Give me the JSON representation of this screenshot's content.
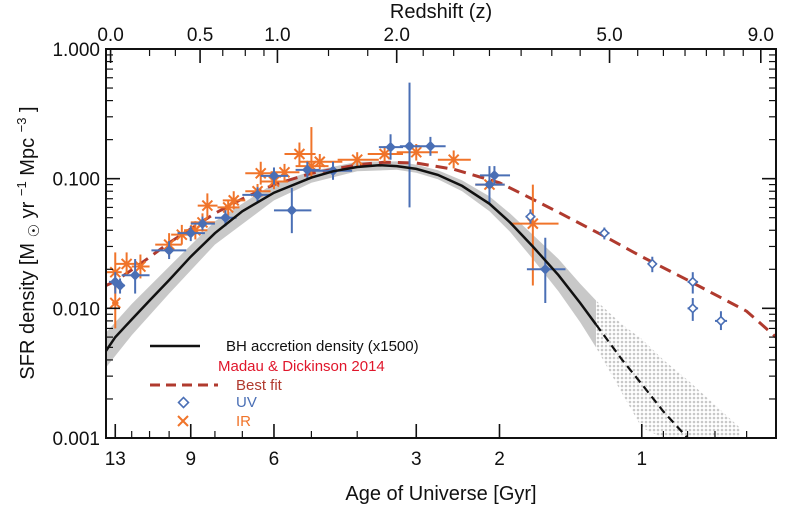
{
  "chart_data": {
    "type": "scatter",
    "title": "",
    "top_axis_title": "Redshift (z)",
    "xlabel": "Age of Universe [Gyr]",
    "ylabel_prefix": "SFR density  [M",
    "ylabel_sun": "☉",
    "ylabel_mid": " yr",
    "ylabel_exp1": "−1",
    "ylabel_mpc": " Mpc",
    "ylabel_exp2": "−3",
    "ylabel_suffix": "]",
    "x_scale": "log",
    "xlim": [
      13.6,
      0.52
    ],
    "y_scale": "log",
    "ylim": [
      0.001,
      1.0
    ],
    "y_ticks": [
      {
        "value": 1.0,
        "label": "1.000"
      },
      {
        "value": 0.1,
        "label": "0.100"
      },
      {
        "value": 0.01,
        "label": "0.010"
      },
      {
        "value": 0.001,
        "label": "0.001"
      }
    ],
    "x_ticks": [
      {
        "value": 13,
        "label": "13"
      },
      {
        "value": 9,
        "label": "9"
      },
      {
        "value": 6,
        "label": "6"
      },
      {
        "value": 3,
        "label": "3"
      },
      {
        "value": 2,
        "label": "2"
      },
      {
        "value": 1,
        "label": "1"
      }
    ],
    "top_ticks": [
      {
        "age": 13.3,
        "label": "0.0"
      },
      {
        "age": 8.6,
        "label": "0.5"
      },
      {
        "age": 5.9,
        "label": "1.0"
      },
      {
        "age": 3.3,
        "label": "2.0"
      },
      {
        "age": 1.17,
        "label": "5.0"
      },
      {
        "age": 0.56,
        "label": "9.0"
      }
    ],
    "legend": {
      "bh_label": "BH accretion density (x1500)",
      "ref_title": "Madau & Dickinson 2014",
      "fit_label": "Best fit",
      "uv_label": "UV",
      "ir_label": "IR"
    },
    "colors": {
      "bh": "#111111",
      "band": "#c8c8c8",
      "fit": "#b03a2e",
      "ref": "#e0162b",
      "uv": "#4a6fb5",
      "ir": "#f0742a"
    },
    "series": [
      {
        "name": "BH accretion density (x1500)",
        "kind": "line",
        "points": [
          [
            13.6,
            0.0047
          ],
          [
            13,
            0.006
          ],
          [
            12,
            0.0082
          ],
          [
            11,
            0.0115
          ],
          [
            10,
            0.0165
          ],
          [
            9,
            0.025
          ],
          [
            8,
            0.038
          ],
          [
            7,
            0.056
          ],
          [
            6,
            0.078
          ],
          [
            5,
            0.102
          ],
          [
            4.5,
            0.114
          ],
          [
            4,
            0.123
          ],
          [
            3.6,
            0.127
          ],
          [
            3.3,
            0.125
          ],
          [
            3,
            0.119
          ],
          [
            2.7,
            0.107
          ],
          [
            2.4,
            0.088
          ],
          [
            2.1,
            0.064
          ],
          [
            1.9,
            0.046
          ],
          [
            1.7,
            0.03
          ],
          [
            1.5,
            0.018
          ],
          [
            1.35,
            0.011
          ],
          [
            1.25,
            0.0075
          ]
        ]
      },
      {
        "name": "BH extrapolation",
        "kind": "line",
        "points": [
          [
            1.25,
            0.0075
          ],
          [
            1.1,
            0.004
          ],
          [
            1.0,
            0.0026
          ],
          [
            0.9,
            0.0016
          ],
          [
            0.8,
            0.001
          ]
        ]
      },
      {
        "name": "BH uncertainty band",
        "kind": "band",
        "points": [
          [
            13.6,
            0.0035,
            0.0065
          ],
          [
            12,
            0.0062,
            0.0108
          ],
          [
            10,
            0.013,
            0.021
          ],
          [
            8,
            0.031,
            0.047
          ],
          [
            6,
            0.068,
            0.092
          ],
          [
            5,
            0.093,
            0.114
          ],
          [
            4,
            0.114,
            0.135
          ],
          [
            3.3,
            0.117,
            0.136
          ],
          [
            3,
            0.111,
            0.128
          ],
          [
            2.7,
            0.099,
            0.116
          ],
          [
            2.4,
            0.08,
            0.097
          ],
          [
            2.1,
            0.056,
            0.073
          ],
          [
            1.9,
            0.039,
            0.054
          ],
          [
            1.7,
            0.024,
            0.037
          ],
          [
            1.5,
            0.0135,
            0.024
          ],
          [
            1.35,
            0.0078,
            0.0155
          ],
          [
            1.25,
            0.005,
            0.0115
          ]
        ]
      },
      {
        "name": "BH extrapolation band",
        "kind": "band",
        "points": [
          [
            1.25,
            0.005,
            0.0115
          ],
          [
            1.1,
            0.0022,
            0.0075
          ],
          [
            1.0,
            0.0012,
            0.0058
          ],
          [
            0.9,
            0.001,
            0.004
          ],
          [
            0.8,
            0.001,
            0.0028
          ],
          [
            0.7,
            0.001,
            0.0018
          ],
          [
            0.62,
            0.001,
            0.0012
          ]
        ]
      },
      {
        "name": "Best fit",
        "kind": "line",
        "points": [
          [
            13.6,
            0.015
          ],
          [
            13,
            0.0162
          ],
          [
            12,
            0.0198
          ],
          [
            11,
            0.0248
          ],
          [
            10,
            0.032
          ],
          [
            9,
            0.041
          ],
          [
            8,
            0.054
          ],
          [
            7,
            0.07
          ],
          [
            6,
            0.09
          ],
          [
            5,
            0.11
          ],
          [
            4,
            0.128
          ],
          [
            3.5,
            0.134
          ],
          [
            3,
            0.132
          ],
          [
            2.5,
            0.118
          ],
          [
            2.2,
            0.103
          ],
          [
            2,
            0.093
          ],
          [
            1.8,
            0.077
          ],
          [
            1.5,
            0.055
          ],
          [
            1.2,
            0.036
          ],
          [
            1,
            0.025
          ],
          [
            0.8,
            0.0165
          ],
          [
            0.6,
            0.0095
          ],
          [
            0.52,
            0.006
          ]
        ]
      },
      {
        "name": "UV",
        "kind": "points",
        "points": [
          {
            "x": 13,
            "y": 0.016,
            "xe": [
              12.6,
              13.4
            ],
            "ye": [
              0.013,
              0.019
            ],
            "f": true
          },
          {
            "x": 12.7,
            "y": 0.015,
            "xe": [
              12.4,
              13.0
            ],
            "ye": [
              0.013,
              0.017
            ],
            "f": true
          },
          {
            "x": 11.8,
            "y": 0.018,
            "xe": [
              11.0,
              12.6
            ],
            "ye": [
              0.013,
              0.024
            ],
            "f": true
          },
          {
            "x": 10,
            "y": 0.028,
            "xe": [
              9.2,
              10.9
            ],
            "ye": [
              0.024,
              0.033
            ],
            "f": true
          },
          {
            "x": 9,
            "y": 0.038,
            "xe": [
              8.4,
              9.6
            ],
            "ye": [
              0.033,
              0.043
            ],
            "f": true
          },
          {
            "x": 8.5,
            "y": 0.045,
            "xe": [
              8.0,
              9.0
            ],
            "ye": [
              0.04,
              0.051
            ],
            "f": true
          },
          {
            "x": 7.6,
            "y": 0.05,
            "xe": [
              7.2,
              8.0
            ],
            "ye": [
              0.043,
              0.057
            ],
            "f": true
          },
          {
            "x": 6.5,
            "y": 0.075,
            "xe": [
              6.1,
              7.0
            ],
            "ye": [
              0.065,
              0.086
            ],
            "f": true
          },
          {
            "x": 6,
            "y": 0.105,
            "xe": [
              5.6,
              6.4
            ],
            "ye": [
              0.09,
              0.122
            ],
            "f": true
          },
          {
            "x": 5.5,
            "y": 0.057,
            "xe": [
              5.0,
              6.0
            ],
            "ye": [
              0.038,
              0.085
            ],
            "f": true
          },
          {
            "x": 5.1,
            "y": 0.117,
            "xe": [
              4.8,
              5.4
            ],
            "ye": [
              0.1,
              0.135
            ],
            "f": true
          },
          {
            "x": 4.5,
            "y": 0.115,
            "xe": [
              4.1,
              5.0
            ],
            "ye": [
              0.098,
              0.135
            ],
            "f": true
          },
          {
            "x": 3.4,
            "y": 0.175,
            "xe": [
              3.2,
              3.6
            ],
            "ye": [
              0.14,
              0.22
            ],
            "f": true
          },
          {
            "x": 3.1,
            "y": 0.178,
            "xe": [
              2.95,
              3.25
            ],
            "ye": [
              0.06,
              0.55
            ],
            "f": true
          },
          {
            "x": 2.8,
            "y": 0.178,
            "xe": [
              2.6,
              3.0
            ],
            "ye": [
              0.15,
              0.21
            ],
            "f": true
          },
          {
            "x": 2.1,
            "y": 0.09,
            "xe": [
              1.95,
              2.25
            ],
            "ye": [
              0.065,
              0.125
            ],
            "f": true
          },
          {
            "x": 2.05,
            "y": 0.106,
            "xe": [
              1.9,
              2.2
            ],
            "ye": [
              0.09,
              0.125
            ],
            "f": true
          },
          {
            "x": 1.6,
            "y": 0.02,
            "xe": [
              1.45,
              1.75
            ],
            "ye": [
              0.011,
              0.035
            ],
            "f": true
          },
          {
            "x": 1.72,
            "y": 0.051,
            "xe": [
              1.68,
              1.76
            ],
            "ye": [
              0.045,
              0.058
            ],
            "f": false
          },
          {
            "x": 1.2,
            "y": 0.038,
            "xe": [
              1.17,
              1.23
            ],
            "ye": [
              0.034,
              0.042
            ],
            "f": false
          },
          {
            "x": 0.95,
            "y": 0.022,
            "xe": [
              0.93,
              0.97
            ],
            "ye": [
              0.019,
              0.025
            ],
            "f": false
          },
          {
            "x": 0.78,
            "y": 0.016,
            "xe": [
              0.76,
              0.8
            ],
            "ye": [
              0.013,
              0.019
            ],
            "f": false
          },
          {
            "x": 0.78,
            "y": 0.01,
            "xe": [
              0.76,
              0.8
            ],
            "ye": [
              0.008,
              0.012
            ],
            "f": false
          },
          {
            "x": 0.68,
            "y": 0.008,
            "xe": [
              0.66,
              0.7
            ],
            "ye": [
              0.0068,
              0.0095
            ],
            "f": false
          }
        ]
      },
      {
        "name": "IR",
        "kind": "points",
        "points": [
          {
            "x": 13,
            "y": 0.019,
            "xe": [
              12.6,
              13.6
            ],
            "ye": [
              0.014,
              0.027
            ]
          },
          {
            "x": 13,
            "y": 0.011,
            "xe": [
              12.8,
              13.2
            ],
            "ye": [
              0.007,
              0.016
            ]
          },
          {
            "x": 12.3,
            "y": 0.022,
            "xe": [
              11.6,
              13.0
            ],
            "ye": [
              0.018,
              0.027
            ]
          },
          {
            "x": 11.5,
            "y": 0.021,
            "xe": [
              11.0,
              12.0
            ],
            "ye": [
              0.017,
              0.026
            ]
          },
          {
            "x": 10,
            "y": 0.031,
            "xe": [
              9.4,
              10.7
            ],
            "ye": [
              0.025,
              0.038
            ]
          },
          {
            "x": 9.4,
            "y": 0.037,
            "xe": [
              8.9,
              9.9
            ],
            "ye": [
              0.031,
              0.044
            ]
          },
          {
            "x": 8.8,
            "y": 0.04,
            "xe": [
              8.3,
              9.3
            ],
            "ye": [
              0.034,
              0.047
            ]
          },
          {
            "x": 8.5,
            "y": 0.046,
            "xe": [
              8.0,
              9.0
            ],
            "ye": [
              0.039,
              0.054
            ]
          },
          {
            "x": 8.3,
            "y": 0.062,
            "xe": [
              7.9,
              8.7
            ],
            "ye": [
              0.05,
              0.077
            ]
          },
          {
            "x": 7.5,
            "y": 0.06,
            "xe": [
              7.1,
              7.9
            ],
            "ye": [
              0.052,
              0.069
            ]
          },
          {
            "x": 7.3,
            "y": 0.068,
            "xe": [
              6.9,
              7.7
            ],
            "ye": [
              0.058,
              0.08
            ]
          },
          {
            "x": 6.5,
            "y": 0.08,
            "xe": [
              6.1,
              6.9
            ],
            "ye": [
              0.07,
              0.091
            ]
          },
          {
            "x": 6.4,
            "y": 0.11,
            "xe": [
              5.9,
              6.9
            ],
            "ye": [
              0.09,
              0.135
            ]
          },
          {
            "x": 6.0,
            "y": 0.095,
            "xe": [
              5.6,
              6.4
            ],
            "ye": [
              0.083,
              0.109
            ]
          },
          {
            "x": 5.7,
            "y": 0.112,
            "xe": [
              5.3,
              6.1
            ],
            "ye": [
              0.097,
              0.13
            ]
          },
          {
            "x": 5.3,
            "y": 0.155,
            "xe": [
              4.9,
              5.7
            ],
            "ye": [
              0.125,
              0.19
            ]
          },
          {
            "x": 5.0,
            "y": 0.125,
            "xe": [
              4.6,
              5.4
            ],
            "ye": [
              0.1,
              0.25
            ]
          },
          {
            "x": 4.8,
            "y": 0.135,
            "xe": [
              4.3,
              5.3
            ],
            "ye": [
              0.118,
              0.155
            ]
          },
          {
            "x": 4.0,
            "y": 0.14,
            "xe": [
              3.6,
              4.4
            ],
            "ye": [
              0.122,
              0.16
            ]
          },
          {
            "x": 3.5,
            "y": 0.155,
            "xe": [
              3.2,
              3.8
            ],
            "ye": [
              0.135,
              0.178
            ]
          },
          {
            "x": 3.0,
            "y": 0.16,
            "xe": [
              2.7,
              3.3
            ],
            "ye": [
              0.138,
              0.185
            ]
          },
          {
            "x": 2.5,
            "y": 0.14,
            "xe": [
              2.3,
              2.7
            ],
            "ye": [
              0.12,
              0.165
            ]
          },
          {
            "x": 2.1,
            "y": 0.09,
            "xe": [
              1.95,
              2.25
            ],
            "ye": [
              0.075,
              0.11
            ]
          },
          {
            "x": 1.7,
            "y": 0.045,
            "xe": [
              1.5,
              1.9
            ],
            "ye": [
              0.015,
              0.09
            ]
          }
        ]
      }
    ]
  }
}
